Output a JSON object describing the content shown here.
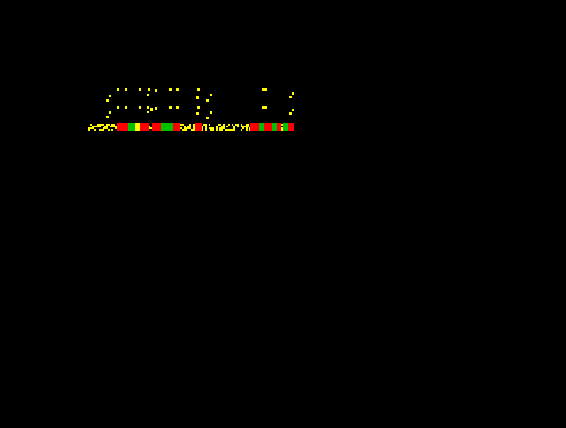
{
  "screen": {
    "background_color": "#000000",
    "glyph_color": "#ffff00",
    "bar_colors": [
      "#ff0000",
      "#00c000",
      "#ffff00"
    ]
  }
}
